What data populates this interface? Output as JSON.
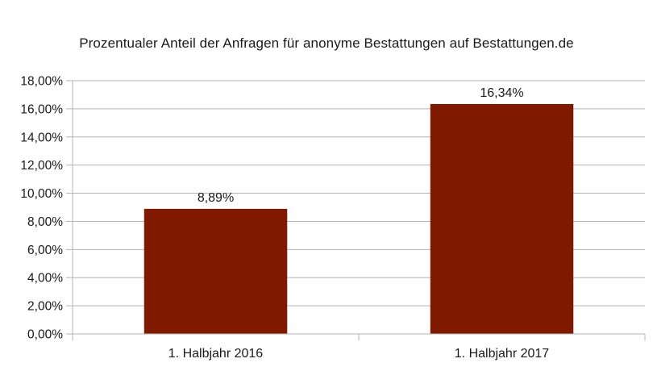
{
  "chart_data": {
    "type": "bar",
    "title": "Prozentualer Anteil der Anfragen für anonyme Bestattungen auf Bestattungen.de",
    "categories": [
      "1. Halbjahr 2016",
      "1. Halbjahr 2017"
    ],
    "values": [
      8.89,
      16.34
    ],
    "data_labels": [
      "8,89%",
      "16,34%"
    ],
    "ylim": [
      0,
      18
    ],
    "yticks": [
      0,
      2,
      4,
      6,
      8,
      10,
      12,
      14,
      16,
      18
    ],
    "ytick_labels": [
      "0,00%",
      "2,00%",
      "4,00%",
      "6,00%",
      "8,00%",
      "10,00%",
      "12,00%",
      "14,00%",
      "16,00%",
      "18,00%"
    ],
    "grid": true,
    "bar_color": "#7f1a00",
    "xlabel": "",
    "ylabel": ""
  }
}
